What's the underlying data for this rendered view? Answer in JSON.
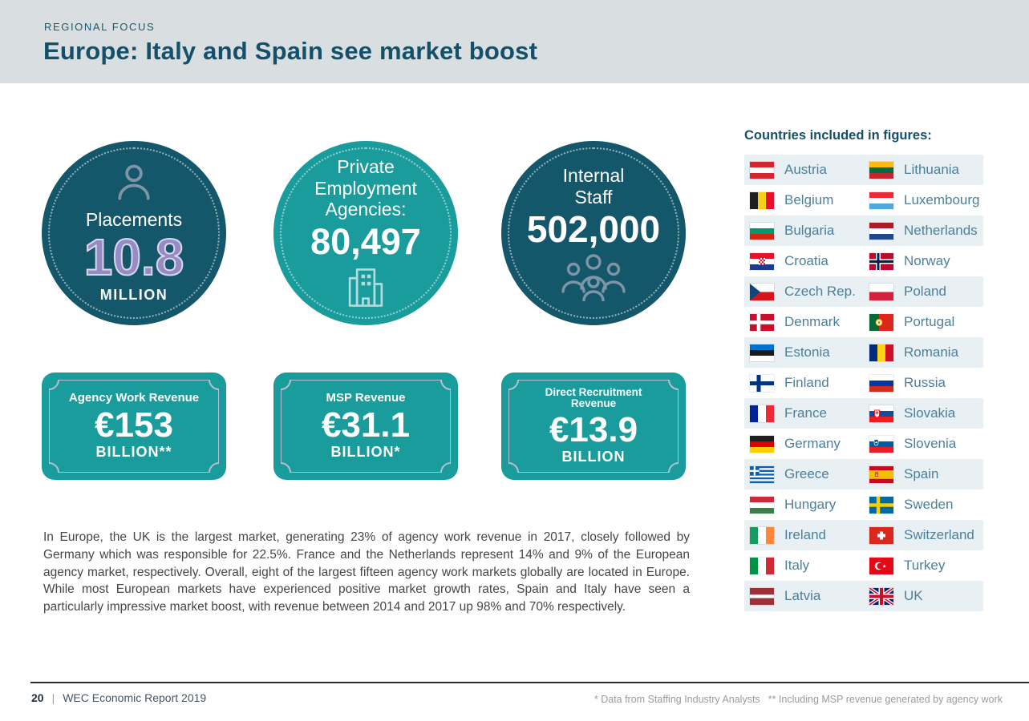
{
  "header": {
    "eyebrow": "REGIONAL FOCUS",
    "title": "Europe: Italy and Spain see market boost"
  },
  "stats_circles": [
    {
      "label": "Placements",
      "value": "10.8",
      "unit": "MILLION",
      "icon": "person-icon"
    },
    {
      "label": "Private Employment Agencies:",
      "value": "80,497",
      "unit": "",
      "icon": "building-icon"
    },
    {
      "label": "Internal Staff",
      "value": "502,000",
      "unit": "",
      "icon": "people-group-icon"
    }
  ],
  "revenue_badges": [
    {
      "label": "Agency Work Revenue",
      "value": "€153",
      "unit": "BILLION**"
    },
    {
      "label": "MSP Revenue",
      "value": "€31.1",
      "unit": "BILLION*"
    },
    {
      "label": "Direct Recruitment Revenue",
      "value": "€13.9",
      "unit": "BILLION"
    }
  ],
  "body_paragraph": "In Europe, the UK is the largest market, generating 23% of agency work revenue in 2017, closely followed by Germany which was responsible for 22.5%. France and the Netherlands represent 14% and 9% of the European agency market, respectively. Overall, eight of the largest fifteen agency work markets globally are located in Europe. While most European markets have experienced positive market growth rates, Spain and Italy have seen a particularly impressive market boost, with revenue between 2014 and 2017 up 98% and 70% respectively.",
  "countries_panel": {
    "title": "Countries included in figures:",
    "rows": [
      {
        "left": {
          "name": "Austria",
          "flag": "austria-flag"
        },
        "right": {
          "name": "Lithuania",
          "flag": "lithuania-flag"
        }
      },
      {
        "left": {
          "name": "Belgium",
          "flag": "belgium-flag"
        },
        "right": {
          "name": "Luxembourg",
          "flag": "luxembourg-flag"
        }
      },
      {
        "left": {
          "name": "Bulgaria",
          "flag": "bulgaria-flag"
        },
        "right": {
          "name": "Netherlands",
          "flag": "netherlands-flag"
        }
      },
      {
        "left": {
          "name": "Croatia",
          "flag": "croatia-flag"
        },
        "right": {
          "name": "Norway",
          "flag": "norway-flag"
        }
      },
      {
        "left": {
          "name": "Czech Rep.",
          "flag": "czech-republic-flag"
        },
        "right": {
          "name": "Poland",
          "flag": "poland-flag"
        }
      },
      {
        "left": {
          "name": "Denmark",
          "flag": "denmark-flag"
        },
        "right": {
          "name": "Portugal",
          "flag": "portugal-flag"
        }
      },
      {
        "left": {
          "name": "Estonia",
          "flag": "estonia-flag"
        },
        "right": {
          "name": "Romania",
          "flag": "romania-flag"
        }
      },
      {
        "left": {
          "name": "Finland",
          "flag": "finland-flag"
        },
        "right": {
          "name": "Russia",
          "flag": "russia-flag"
        }
      },
      {
        "left": {
          "name": "France",
          "flag": "france-flag"
        },
        "right": {
          "name": "Slovakia",
          "flag": "slovakia-flag"
        }
      },
      {
        "left": {
          "name": "Germany",
          "flag": "germany-flag"
        },
        "right": {
          "name": "Slovenia",
          "flag": "slovenia-flag"
        }
      },
      {
        "left": {
          "name": "Greece",
          "flag": "greece-flag"
        },
        "right": {
          "name": "Spain",
          "flag": "spain-flag"
        }
      },
      {
        "left": {
          "name": "Hungary",
          "flag": "hungary-flag"
        },
        "right": {
          "name": "Sweden",
          "flag": "sweden-flag"
        }
      },
      {
        "left": {
          "name": "Ireland",
          "flag": "ireland-flag"
        },
        "right": {
          "name": "Switzerland",
          "flag": "switzerland-flag"
        }
      },
      {
        "left": {
          "name": "Italy",
          "flag": "italy-flag"
        },
        "right": {
          "name": "Turkey",
          "flag": "turkey-flag"
        }
      },
      {
        "left": {
          "name": "Latvia",
          "flag": "latvia-flag"
        },
        "right": {
          "name": "UK",
          "flag": "uk-flag"
        }
      }
    ]
  },
  "footer": {
    "page_number": "20",
    "separator": "|",
    "report_title": "WEC Economic Report 2019",
    "footnotes": [
      "* Data from Staffing Industry Analysts",
      "** Including MSP revenue generated by agency work"
    ]
  },
  "colors": {
    "header_bg": "#d9dee1",
    "dark_teal": "#14566a",
    "teal": "#1a9b9c",
    "purple": "#968cc4",
    "title_color": "#15506b",
    "country_text": "#4d7f9a",
    "row_shade": "#e9f0f3",
    "body_text": "#464646",
    "footnote": "#9b9b9b"
  }
}
